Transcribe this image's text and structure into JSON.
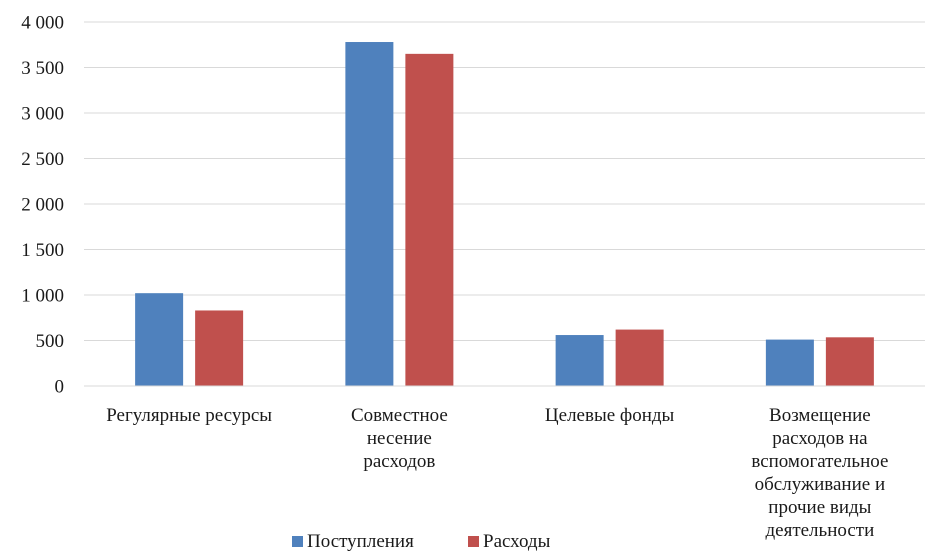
{
  "chart_data": {
    "type": "bar",
    "title": "",
    "xlabel": "",
    "ylabel": "",
    "ylim": [
      0,
      4000
    ],
    "yticks": [
      {
        "value": 0,
        "label": "0"
      },
      {
        "value": 500,
        "label": "500"
      },
      {
        "value": 1000,
        "label": "1 000"
      },
      {
        "value": 1500,
        "label": "1 500"
      },
      {
        "value": 2000,
        "label": "2 000"
      },
      {
        "value": 2500,
        "label": "2 500"
      },
      {
        "value": 3000,
        "label": "3 000"
      },
      {
        "value": 3500,
        "label": "3 500"
      },
      {
        "value": 4000,
        "label": "4 000"
      }
    ],
    "grid": true,
    "legend_position": "bottom",
    "categories": [
      [
        "Регулярные ресурсы"
      ],
      [
        "Совместное",
        "несение",
        "расходов"
      ],
      [
        "Целевые фонды"
      ],
      [
        "Возмещение",
        "расходов на",
        "вспомогательное",
        "обслуживание и",
        "прочие виды",
        "деятельности"
      ]
    ],
    "series": [
      {
        "name": "Поступления",
        "color": "#4f81bd",
        "values": [
          1020,
          3780,
          560,
          510
        ]
      },
      {
        "name": "Расходы",
        "color": "#c0504d",
        "values": [
          830,
          3650,
          620,
          535
        ]
      }
    ]
  }
}
